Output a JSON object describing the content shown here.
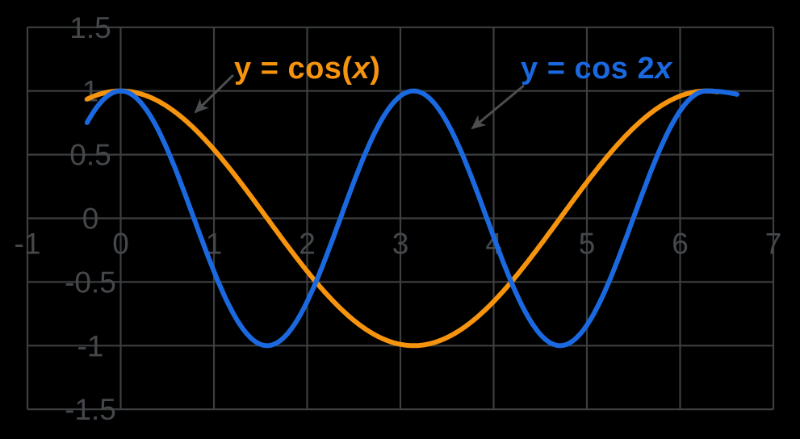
{
  "chart_data": {
    "type": "line",
    "title": "",
    "background_color": "#000000",
    "grid": "on",
    "grid_color": "#3c3e40",
    "tick_label_color": "#45484b",
    "arrow_color": "#4b4d4f",
    "x_axis": {
      "min": -1,
      "max": 7,
      "tick_labels": [
        "-1",
        "0",
        "1",
        "2",
        "3",
        "4",
        "5",
        "6",
        "7"
      ]
    },
    "y_axis": {
      "min": -1.5,
      "max": 1.5,
      "tick_labels": [
        "1.5",
        "1",
        "0.5",
        "0",
        "-0.5",
        "-1",
        "-1.5"
      ]
    },
    "series": [
      {
        "id": "cosx",
        "function": "y = cos(x)",
        "label": {
          "before": "y = cos(",
          "variable": "x",
          "after": ")"
        },
        "color": "#f6940e",
        "domain": [
          -0.36,
          6.4
        ],
        "key_points": [
          {
            "x": -0.36,
            "y": 0.94
          },
          {
            "x": 0,
            "y": 1
          },
          {
            "x": 1.571,
            "y": 0
          },
          {
            "x": 3.142,
            "y": -1
          },
          {
            "x": 4.712,
            "y": 0
          },
          {
            "x": 6.283,
            "y": 1
          },
          {
            "x": 6.4,
            "y": 0.99
          }
        ]
      },
      {
        "id": "cos2x",
        "function": "y = cos(2x)",
        "label": {
          "before": "y = cos 2",
          "variable": "x",
          "after": ""
        },
        "color": "#1b69e0",
        "domain": [
          -0.36,
          6.61
        ],
        "key_points": [
          {
            "x": -0.36,
            "y": 0.75
          },
          {
            "x": 0,
            "y": 1
          },
          {
            "x": 0.785,
            "y": 0
          },
          {
            "x": 1.571,
            "y": -1
          },
          {
            "x": 2.356,
            "y": 0
          },
          {
            "x": 3.142,
            "y": 1
          },
          {
            "x": 3.927,
            "y": 0
          },
          {
            "x": 4.712,
            "y": -1
          },
          {
            "x": 5.498,
            "y": 0
          },
          {
            "x": 6.283,
            "y": 1
          }
        ]
      }
    ]
  }
}
